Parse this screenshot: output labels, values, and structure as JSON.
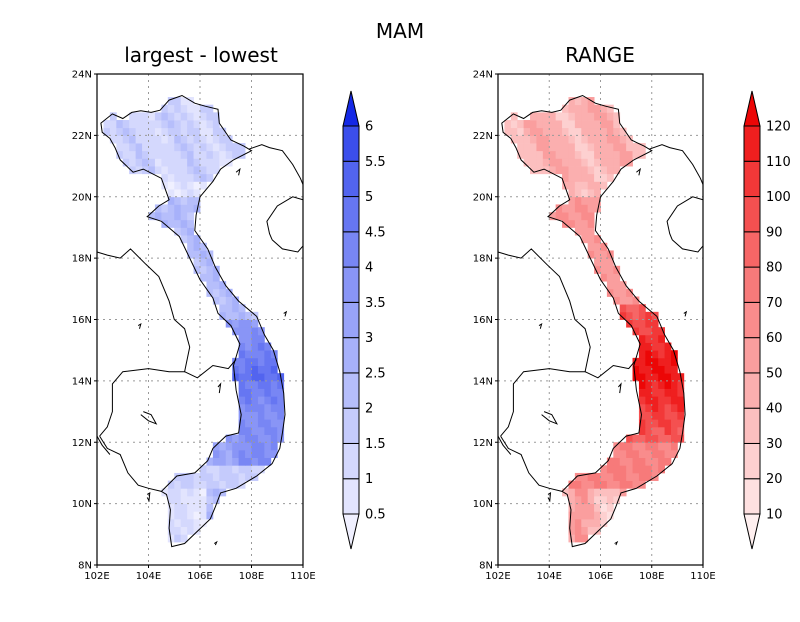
{
  "figure": {
    "title": "MAM"
  },
  "panels": [
    {
      "id": "left",
      "title": "largest - lowest",
      "x_ticks": [
        "102E",
        "104E",
        "106E",
        "108E",
        "110E"
      ],
      "y_ticks": [
        "8N",
        "10N",
        "12N",
        "14N",
        "16N",
        "18N",
        "20N",
        "22N",
        "24N"
      ],
      "colorbar": {
        "labels": [
          "0.5",
          "1",
          "1.5",
          "2",
          "2.5",
          "3",
          "3.5",
          "4",
          "4.5",
          "5",
          "5.5",
          "6"
        ],
        "colors": [
          "#f0f0ff",
          "#e2e4fe",
          "#d4d8fd",
          "#c5cbfc",
          "#b6befb",
          "#a7b1fa",
          "#98a3f8",
          "#8995f6",
          "#7886f4",
          "#6676f2",
          "#5264ef",
          "#3b4eeb",
          "#1428e6"
        ]
      }
    },
    {
      "id": "right",
      "title": "RANGE",
      "x_ticks": [
        "102E",
        "104E",
        "106E",
        "108E",
        "110E"
      ],
      "y_ticks": [
        "8N",
        "10N",
        "12N",
        "14N",
        "16N",
        "18N",
        "20N",
        "22N",
        "24N"
      ],
      "colorbar": {
        "labels": [
          "10",
          "20",
          "30",
          "40",
          "50",
          "60",
          "70",
          "80",
          "90",
          "100",
          "110",
          "120"
        ],
        "colors": [
          "#fff0f0",
          "#fee0e0",
          "#fdd0d0",
          "#fcbfbf",
          "#fbafaf",
          "#fa9e9e",
          "#f98c8c",
          "#f77a7a",
          "#f66666",
          "#f45050",
          "#f23838",
          "#ef1f1f",
          "#ec0606"
        ]
      }
    }
  ]
}
